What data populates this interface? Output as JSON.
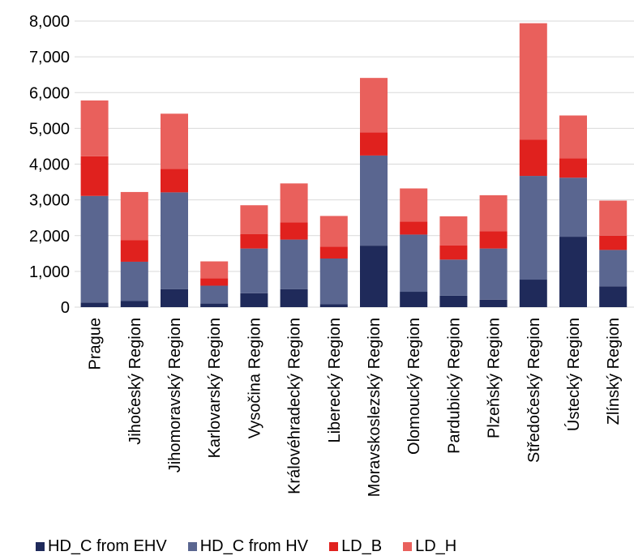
{
  "chart_data": {
    "type": "bar",
    "stacked": true,
    "categories": [
      "Prague",
      "Jihočeský Region",
      "Jihomoravský Region",
      "Karlovarský Region",
      "Vysočina Region",
      "Královéhradecký Region",
      "Liberecký Region",
      "Moravskoslezský Region",
      "Olomoucký Region",
      "Pardubický Region",
      "Plzeňský Region",
      "Středočeský Region",
      "Ústecký Region",
      "Zlínský Region"
    ],
    "series": [
      {
        "name": "HD_C from EHV",
        "color": "#1f2a5a",
        "values": [
          130,
          170,
          500,
          100,
          390,
          500,
          80,
          1720,
          430,
          320,
          210,
          770,
          1970,
          580
        ]
      },
      {
        "name": "HD_C from HV",
        "color": "#5a6690",
        "values": [
          2980,
          1100,
          2710,
          500,
          1250,
          1390,
          1280,
          2520,
          1600,
          1010,
          1430,
          2900,
          1650,
          1020
        ]
      },
      {
        "name": "LD_B",
        "color": "#e0211e",
        "values": [
          1110,
          600,
          660,
          210,
          400,
          480,
          330,
          650,
          360,
          400,
          480,
          1010,
          540,
          400
        ]
      },
      {
        "name": "LD_H",
        "color": "#e9605c",
        "values": [
          1560,
          1350,
          1540,
          470,
          810,
          1090,
          860,
          1520,
          930,
          810,
          1010,
          3260,
          1200,
          980
        ]
      }
    ],
    "yticks": [
      "0",
      "1,000",
      "2,000",
      "3,000",
      "4,000",
      "5,000",
      "6,000",
      "7,000",
      "8,000"
    ],
    "ylim": [
      0,
      8000
    ],
    "grid": true,
    "legend": "bottom"
  }
}
